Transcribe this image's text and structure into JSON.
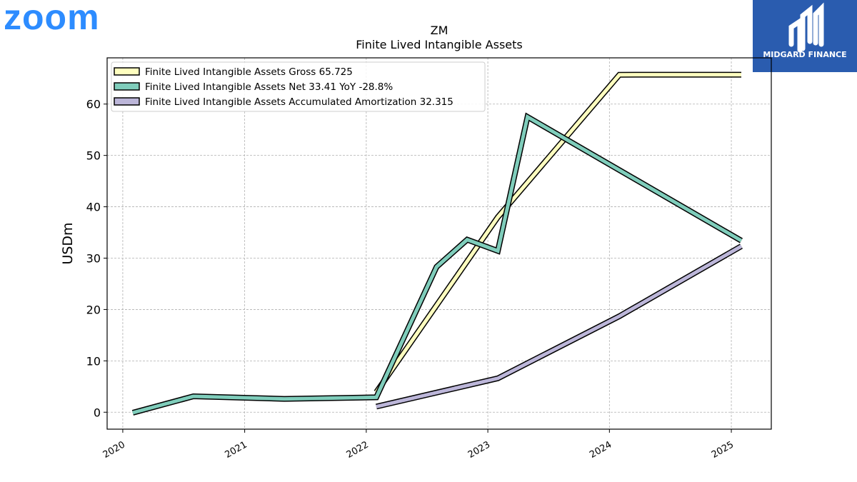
{
  "brand": {
    "logo_text": "zoom",
    "logo_color": "#2D8CFF",
    "partner_name": "MIDGARD FINANCE",
    "partner_color": "#2A5CAF"
  },
  "chart_data": {
    "type": "line",
    "title": "ZM",
    "subtitle": "Finite Lived Intangible Assets",
    "xlabel": "",
    "ylabel": "USDm",
    "xlim": [
      "2019-11-15",
      "2025-05-01"
    ],
    "ylim": [
      -3.3,
      69
    ],
    "x_ticks": [
      "2020",
      "2021",
      "2022",
      "2023",
      "2024",
      "2025"
    ],
    "y_ticks": [
      0,
      10,
      20,
      30,
      40,
      50,
      60
    ],
    "grid": true,
    "legend_position": "top-left",
    "series": [
      {
        "name": "Finite Lived Intangible Assets Gross",
        "legend_label": "Finite Lived Intangible Assets Gross  65.725",
        "color": "#FFFFBF",
        "points": [
          {
            "x": "2022-01-31",
            "y": 3.9
          },
          {
            "x": "2023-01-31",
            "y": 38.0
          },
          {
            "x": "2024-01-31",
            "y": 65.7
          },
          {
            "x": "2025-01-31",
            "y": 65.725
          }
        ]
      },
      {
        "name": "Finite Lived Intangible Assets Net",
        "legend_label": "Finite Lived Intangible Assets Net  33.41 YoY -28.8%",
        "color": "#7FCDBB",
        "points": [
          {
            "x": "2020-01-31",
            "y": -0.1
          },
          {
            "x": "2020-07-31",
            "y": 3.1
          },
          {
            "x": "2021-04-30",
            "y": 2.6
          },
          {
            "x": "2022-01-31",
            "y": 2.9
          },
          {
            "x": "2022-07-31",
            "y": 28.3
          },
          {
            "x": "2022-10-31",
            "y": 33.6
          },
          {
            "x": "2023-01-31",
            "y": 31.4
          },
          {
            "x": "2023-04-30",
            "y": 57.5
          },
          {
            "x": "2025-01-31",
            "y": 33.41
          }
        ]
      },
      {
        "name": "Finite Lived Intangible Assets Accumulated Amortization",
        "legend_label": "Finite Lived Intangible Assets Accumulated Amortization  32.315",
        "color": "#BCB6D9",
        "points": [
          {
            "x": "2022-01-31",
            "y": 1.1
          },
          {
            "x": "2023-01-31",
            "y": 6.6
          },
          {
            "x": "2024-01-31",
            "y": 18.7
          },
          {
            "x": "2025-01-31",
            "y": 32.315
          }
        ]
      }
    ]
  }
}
